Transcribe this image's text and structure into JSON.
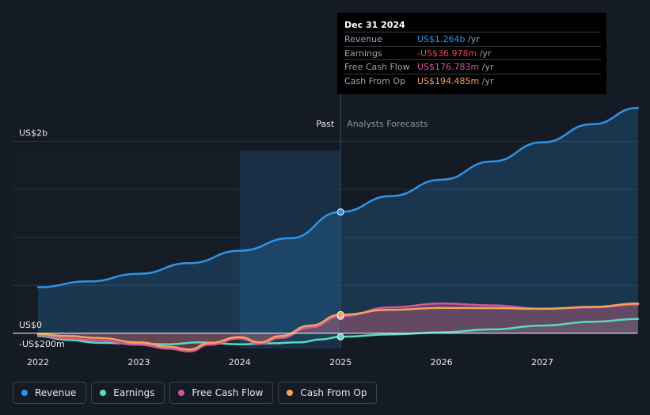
{
  "tooltip": {
    "date": "Dec 31 2024",
    "rows": [
      {
        "label": "Revenue",
        "value": "US$1.264b",
        "unit": " /yr",
        "color": "#2e94e6"
      },
      {
        "label": "Earnings",
        "value": "-US$36.978m",
        "unit": " /yr",
        "color": "#e8414e"
      },
      {
        "label": "Free Cash Flow",
        "value": "US$176.783m",
        "unit": " /yr",
        "color": "#d8559b"
      },
      {
        "label": "Cash From Op",
        "value": "US$194.485m",
        "unit": " /yr",
        "color": "#f4a259"
      }
    ]
  },
  "labels": {
    "past": "Past",
    "forecast": "Analysts Forecasts"
  },
  "legend": [
    {
      "label": "Revenue",
      "color": "#2e94e6"
    },
    {
      "label": "Earnings",
      "color": "#5ad8c0"
    },
    {
      "label": "Free Cash Flow",
      "color": "#d8559b"
    },
    {
      "label": "Cash From Op",
      "color": "#f4a259"
    }
  ],
  "chart_data": {
    "type": "line",
    "y_tick_labels": [
      "US$2b",
      "US$0",
      "-US$200m"
    ],
    "y_ticks": [
      2000,
      0,
      -200
    ],
    "ylim": [
      -200,
      2400
    ],
    "xlim": [
      2022.0,
      2027.95
    ],
    "x_tick_labels": [
      "2022",
      "2023",
      "2024",
      "2025",
      "2026",
      "2027"
    ],
    "x_ticks": [
      2022.0,
      2023.0,
      2024.0,
      2025.0,
      2026.0,
      2027.0
    ],
    "divider": 2025.0,
    "forecast_band_start": 2024.0,
    "series": [
      {
        "name": "Revenue",
        "color": "#2e94e6",
        "points": [
          [
            2022.0,
            480
          ],
          [
            2022.5,
            540
          ],
          [
            2023.0,
            620
          ],
          [
            2023.5,
            730
          ],
          [
            2024.0,
            860
          ],
          [
            2024.5,
            990
          ],
          [
            2025.0,
            1264
          ],
          [
            2025.5,
            1430
          ],
          [
            2026.0,
            1600
          ],
          [
            2026.5,
            1790
          ],
          [
            2027.0,
            1990
          ],
          [
            2027.5,
            2180
          ],
          [
            2027.95,
            2350
          ]
        ]
      },
      {
        "name": "Earnings",
        "color": "#5ad8c0",
        "points": [
          [
            2022.0,
            -30
          ],
          [
            2022.3,
            -70
          ],
          [
            2022.6,
            -100
          ],
          [
            2023.0,
            -110
          ],
          [
            2023.3,
            -115
          ],
          [
            2023.6,
            -95
          ],
          [
            2024.0,
            -115
          ],
          [
            2024.3,
            -105
          ],
          [
            2024.6,
            -95
          ],
          [
            2024.8,
            -65
          ],
          [
            2025.0,
            -37
          ],
          [
            2025.5,
            -12
          ],
          [
            2026.0,
            10
          ],
          [
            2026.5,
            40
          ],
          [
            2027.0,
            80
          ],
          [
            2027.5,
            120
          ],
          [
            2027.95,
            150
          ]
        ]
      },
      {
        "name": "Free Cash Flow",
        "color": "#d8559b",
        "points": [
          [
            2022.0,
            -20
          ],
          [
            2022.3,
            -55
          ],
          [
            2022.6,
            -75
          ],
          [
            2023.0,
            -120
          ],
          [
            2023.3,
            -160
          ],
          [
            2023.5,
            -190
          ],
          [
            2023.7,
            -120
          ],
          [
            2024.0,
            -55
          ],
          [
            2024.2,
            -110
          ],
          [
            2024.4,
            -50
          ],
          [
            2024.7,
            60
          ],
          [
            2025.0,
            177
          ],
          [
            2025.5,
            270
          ],
          [
            2026.0,
            310
          ],
          [
            2026.5,
            290
          ],
          [
            2027.0,
            255
          ],
          [
            2027.5,
            270
          ],
          [
            2027.95,
            300
          ]
        ]
      },
      {
        "name": "Cash From Op",
        "color": "#f4a259",
        "points": [
          [
            2022.0,
            -10
          ],
          [
            2022.3,
            -30
          ],
          [
            2022.6,
            -50
          ],
          [
            2023.0,
            -95
          ],
          [
            2023.3,
            -140
          ],
          [
            2023.5,
            -170
          ],
          [
            2023.7,
            -100
          ],
          [
            2024.0,
            -40
          ],
          [
            2024.2,
            -95
          ],
          [
            2024.4,
            -30
          ],
          [
            2024.7,
            80
          ],
          [
            2025.0,
            194
          ],
          [
            2025.5,
            245
          ],
          [
            2026.0,
            265
          ],
          [
            2026.5,
            262
          ],
          [
            2027.0,
            255
          ],
          [
            2027.5,
            275
          ],
          [
            2027.95,
            310
          ]
        ]
      }
    ],
    "markers": [
      {
        "series": "Revenue",
        "x": 2025.0,
        "y": 1264
      },
      {
        "series": "Earnings",
        "x": 2025.0,
        "y": -37
      },
      {
        "series": "Free Cash Flow",
        "x": 2025.0,
        "y": 177
      },
      {
        "series": "Cash From Op",
        "x": 2025.0,
        "y": 194
      }
    ]
  }
}
